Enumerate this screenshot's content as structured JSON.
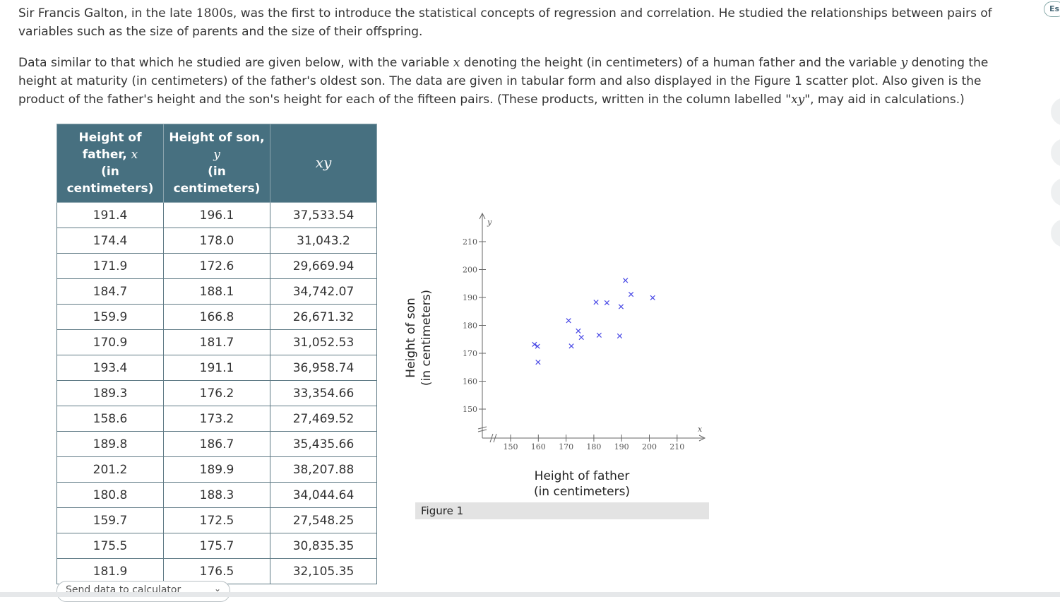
{
  "intro": {
    "p1": [
      {
        "t": "Sir Francis Galton, in the late "
      },
      {
        "t": "1800",
        "c": "num"
      },
      {
        "t": "s, was the first to introduce the statistical concepts of regression and correlation. He studied the relationships between pairs of variables such as the size of parents and the size of their offspring."
      }
    ],
    "p2": [
      {
        "t": "Data similar to that which he studied are given below, with the variable "
      },
      {
        "t": "x",
        "c": "math"
      },
      {
        "t": " denoting the height (in centimeters) of a human father and the variable "
      },
      {
        "t": "y",
        "c": "math"
      },
      {
        "t": " denoting the height at maturity (in centimeters) of the father's oldest son. The data are given in tabular form and also displayed in the Figure 1 scatter plot. Also given is the product of the father's height and the son's height for each of the fifteen pairs. (These products, written in the column labelled \""
      },
      {
        "t": "xy",
        "c": "math"
      },
      {
        "t": "\", may aid in calculations.)"
      }
    ]
  },
  "table": {
    "headers": {
      "father_a": "Height of",
      "father_b": "father, ",
      "father_var": "x",
      "father_c": "(in",
      "father_d": "centimeters)",
      "son_a": "Height of son,",
      "son_var": "y",
      "son_c": "(in",
      "son_d": "centimeters)",
      "xy": "xy"
    },
    "rows": [
      [
        "191.4",
        "196.1",
        "37,533.54"
      ],
      [
        "174.4",
        "178.0",
        "31,043.2"
      ],
      [
        "171.9",
        "172.6",
        "29,669.94"
      ],
      [
        "184.7",
        "188.1",
        "34,742.07"
      ],
      [
        "159.9",
        "166.8",
        "26,671.32"
      ],
      [
        "170.9",
        "181.7",
        "31,052.53"
      ],
      [
        "193.4",
        "191.1",
        "36,958.74"
      ],
      [
        "189.3",
        "176.2",
        "33,354.66"
      ],
      [
        "158.6",
        "173.2",
        "27,469.52"
      ],
      [
        "189.8",
        "186.7",
        "35,435.66"
      ],
      [
        "201.2",
        "189.9",
        "38,207.88"
      ],
      [
        "180.8",
        "188.3",
        "34,044.64"
      ],
      [
        "159.7",
        "172.5",
        "27,548.25"
      ],
      [
        "175.5",
        "175.7",
        "30,835.35"
      ],
      [
        "181.9",
        "176.5",
        "32,105.35"
      ]
    ]
  },
  "calculator_button": "Send data to calculator",
  "side_tab": "Es",
  "figure": {
    "y_axis_label_1": "Height of son",
    "y_axis_label_2": "(in centimeters)",
    "x_axis_label_1": "Height of father",
    "x_axis_label_2": "(in centimeters)",
    "caption": "Figure 1"
  },
  "chart_data": {
    "type": "scatter",
    "x_axis_letter": "x",
    "y_axis_letter": "y",
    "x_ticks": [
      150,
      160,
      170,
      180,
      190,
      200,
      210
    ],
    "y_ticks": [
      150,
      160,
      170,
      180,
      190,
      200,
      210
    ],
    "axis_break": true,
    "marker": "x",
    "marker_color": "#4a4ae6",
    "points": [
      {
        "x": 191.4,
        "y": 196.1
      },
      {
        "x": 174.4,
        "y": 178.0
      },
      {
        "x": 171.9,
        "y": 172.6
      },
      {
        "x": 184.7,
        "y": 188.1
      },
      {
        "x": 159.9,
        "y": 166.8
      },
      {
        "x": 170.9,
        "y": 181.7
      },
      {
        "x": 193.4,
        "y": 191.1
      },
      {
        "x": 189.3,
        "y": 176.2
      },
      {
        "x": 158.6,
        "y": 173.2
      },
      {
        "x": 189.8,
        "y": 186.7
      },
      {
        "x": 201.2,
        "y": 189.9
      },
      {
        "x": 180.8,
        "y": 188.3
      },
      {
        "x": 159.7,
        "y": 172.5
      },
      {
        "x": 175.5,
        "y": 175.7
      },
      {
        "x": 181.9,
        "y": 176.5
      }
    ]
  }
}
